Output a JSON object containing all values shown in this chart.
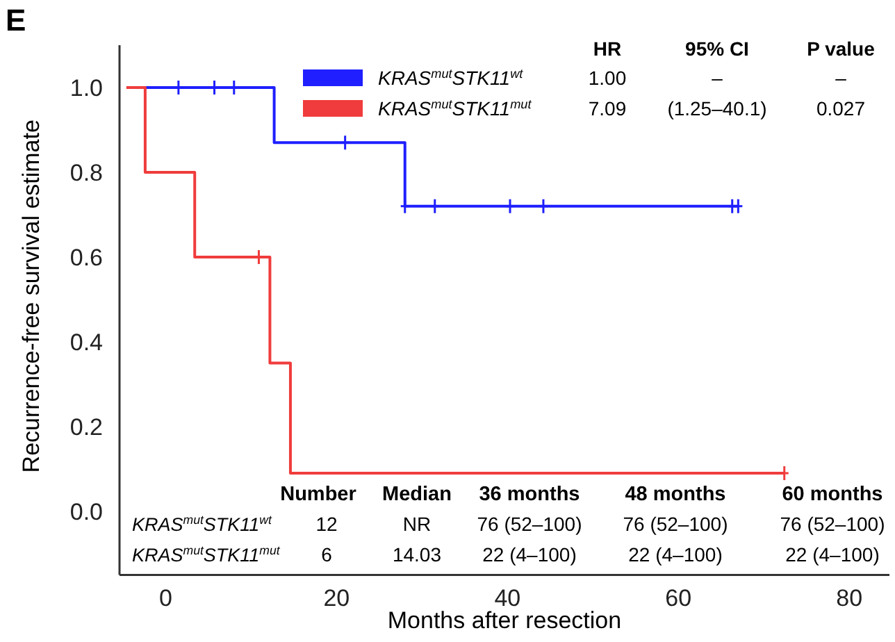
{
  "chart_data": {
    "type": "step",
    "title": "E",
    "xlabel": "Months after resection",
    "ylabel": "Recurrence-free survival estimate",
    "xlim": [
      -5.4,
      84.7
    ],
    "ylim": [
      -0.15,
      1.1
    ],
    "xticks": [
      0,
      20,
      40,
      60,
      80
    ],
    "yticks": [
      {
        "value": 0,
        "label": "0.0"
      },
      {
        "value": 0.2,
        "label": "0.2"
      },
      {
        "value": 0.4,
        "label": "0.4"
      },
      {
        "value": 0.6,
        "label": "0.6"
      },
      {
        "value": 0.8,
        "label": "0.8"
      },
      {
        "value": 1,
        "label": "1.0"
      }
    ],
    "grid": false,
    "legend": "top",
    "series": [
      {
        "name": "KRAS$^{mut}$STK11$^{wt}$",
        "color": "#1f1fff",
        "x": [
          -2.4,
          12.7,
          28,
          67
        ],
        "values": [
          1,
          0.87,
          0.72,
          0.72
        ]
      },
      {
        "name": "KRAS$^{mut}$STK11$^{mut}$",
        "color": "#f03c3c",
        "x": [
          -4.6,
          -2.4,
          3.4,
          12.2,
          14.6,
          72.4
        ],
        "values": [
          1,
          0.8,
          0.6,
          0.35,
          0.09,
          0.09
        ]
      },
      {
        "type": "scatter",
        "marker": "cross",
        "color": "#1f1fff",
        "x": [
          1.5,
          5.7,
          8,
          21,
          28,
          31.5,
          40.3,
          44.2,
          66.3,
          67
        ],
        "values": [
          1,
          1,
          1,
          0.87,
          0.72,
          0.72,
          0.72,
          0.72,
          0.72,
          0.72
        ]
      },
      {
        "type": "scatter",
        "marker": "cross",
        "color": "#f03c3c",
        "x": [
          10.9,
          72.4
        ],
        "values": [
          0.6,
          0.09
        ]
      }
    ],
    "annotations": [
      "HR",
      "95% CI",
      "P value",
      "1.00",
      "–",
      "–",
      "7.09",
      "(1.25–40.1)",
      "0.027",
      "Number",
      "Median",
      "36 months",
      "48 months",
      "60 months",
      "12",
      "NR",
      "76 (52–100)",
      "76 (52–100)",
      "76 (52–100)",
      "6",
      "14.03",
      "22 (4–100)",
      "22 (4–100)",
      "22 (4–100)"
    ]
  }
}
